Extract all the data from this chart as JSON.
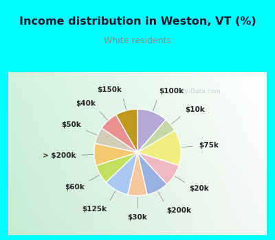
{
  "title": "Income distribution in Weston, VT (%)",
  "subtitle": "White residents",
  "title_color": "#1a1a2e",
  "subtitle_color": "#888888",
  "bg_cyan": "#00ffff",
  "slices": [
    {
      "label": "$100k",
      "value": 11,
      "color": "#b3a8d8"
    },
    {
      "label": "$10k",
      "value": 5,
      "color": "#c5d8a8"
    },
    {
      "label": "$75k",
      "value": 13,
      "color": "#f0ee80"
    },
    {
      "label": "$20k",
      "value": 8,
      "color": "#f0b8c0"
    },
    {
      "label": "$200k",
      "value": 8,
      "color": "#9ab0e0"
    },
    {
      "label": "$30k",
      "value": 7,
      "color": "#f5c8a0"
    },
    {
      "label": "$125k",
      "value": 9,
      "color": "#a8c8f0"
    },
    {
      "label": "$60k",
      "value": 7,
      "color": "#c0e060"
    },
    {
      "label": "> $200k",
      "value": 8,
      "color": "#f5c870"
    },
    {
      "label": "$50k",
      "value": 6,
      "color": "#d5ccb8"
    },
    {
      "label": "$40k",
      "value": 7,
      "color": "#e89090"
    },
    {
      "label": "$150k",
      "value": 8,
      "color": "#c09820"
    }
  ],
  "title_fontsize": 11.5,
  "subtitle_fontsize": 9,
  "label_fontsize": 7.5
}
